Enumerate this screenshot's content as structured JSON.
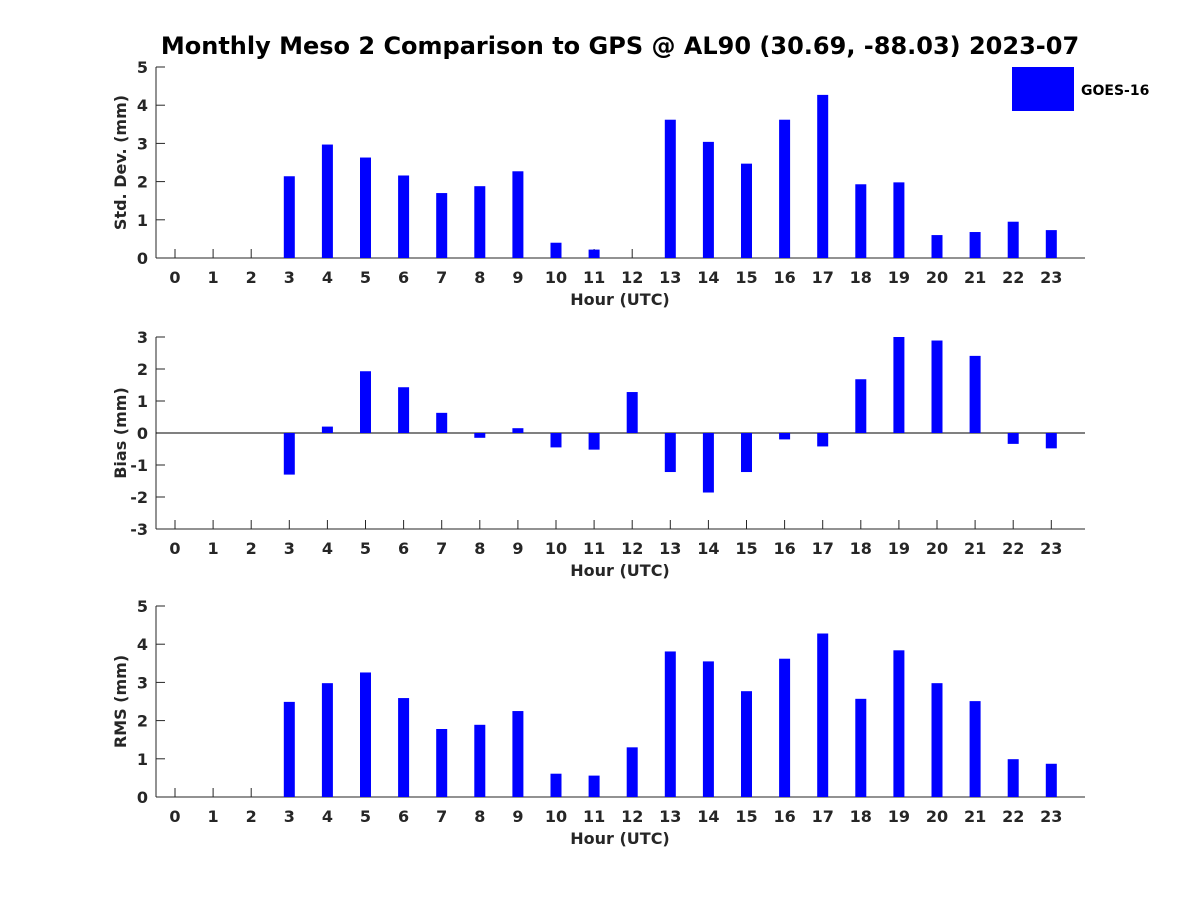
{
  "chart_data": {
    "title": "Monthly Meso 2 Comparison to GPS @ AL90 (30.69, -88.03) 2023-07",
    "legend": {
      "entries": [
        "GOES-16"
      ],
      "placement": "top-right",
      "color": "#0000ff"
    },
    "bar_color": "#0000ff",
    "panels": [
      {
        "type": "bar",
        "xlabel": "Hour (UTC)",
        "ylabel": "Std. Dev. (mm)",
        "ylim": [
          0,
          5
        ],
        "yticks": [
          0,
          1,
          2,
          3,
          4,
          5
        ],
        "categories": [
          "0",
          "1",
          "2",
          "3",
          "4",
          "5",
          "6",
          "7",
          "8",
          "9",
          "10",
          "11",
          "12",
          "13",
          "14",
          "15",
          "16",
          "17",
          "18",
          "19",
          "20",
          "21",
          "22",
          "23"
        ],
        "series": [
          {
            "name": "GOES-16",
            "values": [
              null,
              null,
              null,
              2.14,
              2.97,
              2.63,
              2.16,
              1.7,
              1.88,
              2.27,
              0.4,
              0.22,
              null,
              3.62,
              3.04,
              2.47,
              3.62,
              4.27,
              1.93,
              1.98,
              0.6,
              0.68,
              0.95,
              0.73
            ]
          }
        ],
        "zero_line": false
      },
      {
        "type": "bar",
        "xlabel": "Hour (UTC)",
        "ylabel": "Bias (mm)",
        "ylim": [
          -3,
          3
        ],
        "yticks": [
          -3,
          -2,
          -1,
          0,
          1,
          2,
          3
        ],
        "categories": [
          "0",
          "1",
          "2",
          "3",
          "4",
          "5",
          "6",
          "7",
          "8",
          "9",
          "10",
          "11",
          "12",
          "13",
          "14",
          "15",
          "16",
          "17",
          "18",
          "19",
          "20",
          "21",
          "22",
          "23"
        ],
        "series": [
          {
            "name": "GOES-16",
            "values": [
              null,
              null,
              null,
              -1.3,
              0.2,
              1.93,
              1.43,
              0.63,
              -0.15,
              0.15,
              -0.45,
              -0.52,
              1.28,
              -1.22,
              -1.86,
              -1.22,
              -0.2,
              -0.42,
              1.68,
              3.0,
              2.89,
              2.41,
              -0.34,
              -0.48
            ]
          }
        ],
        "zero_line": true
      },
      {
        "type": "bar",
        "xlabel": "Hour (UTC)",
        "ylabel": "RMS (mm)",
        "ylim": [
          0,
          5
        ],
        "yticks": [
          0,
          1,
          2,
          3,
          4,
          5
        ],
        "categories": [
          "0",
          "1",
          "2",
          "3",
          "4",
          "5",
          "6",
          "7",
          "8",
          "9",
          "10",
          "11",
          "12",
          "13",
          "14",
          "15",
          "16",
          "17",
          "18",
          "19",
          "20",
          "21",
          "22",
          "23"
        ],
        "series": [
          {
            "name": "GOES-16",
            "values": [
              null,
              null,
              null,
              2.49,
              2.98,
              3.26,
              2.59,
              1.78,
              1.89,
              2.25,
              0.61,
              0.56,
              1.3,
              3.81,
              3.55,
              2.77,
              3.62,
              4.28,
              2.57,
              3.84,
              2.98,
              2.51,
              0.99,
              0.87
            ]
          }
        ],
        "zero_line": false
      }
    ]
  }
}
